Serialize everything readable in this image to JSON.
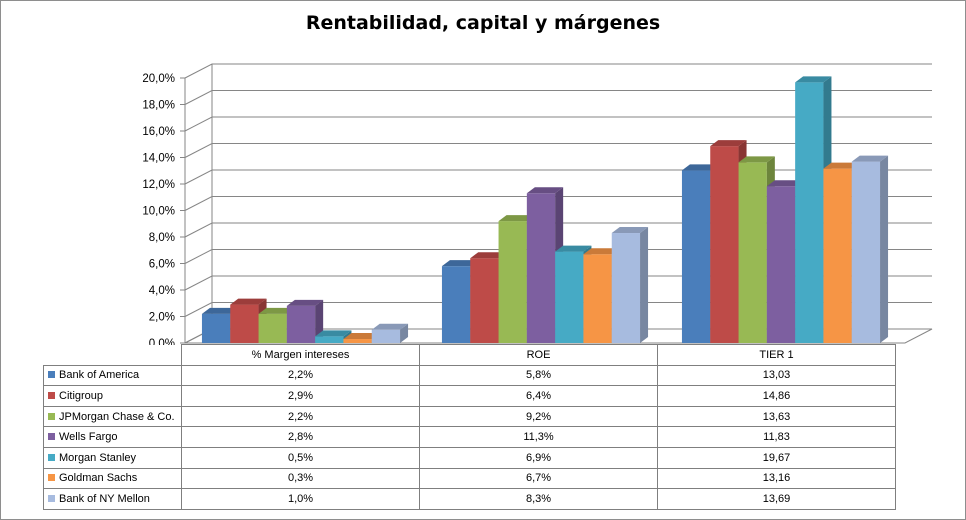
{
  "chart_data": {
    "type": "bar",
    "title": "Rentabilidad, capital y márgenes",
    "categories": [
      "% Margen intereses",
      "ROE",
      "TIER 1"
    ],
    "ylim": [
      0,
      20
    ],
    "ytick_labels": [
      "0,0%",
      "2,0%",
      "4,0%",
      "6,0%",
      "8,0%",
      "10,0%",
      "12,0%",
      "14,0%",
      "16,0%",
      "18,0%",
      "20,0%"
    ],
    "grid": true,
    "legend": "data table below chart",
    "series": [
      {
        "name": "Bank of America",
        "color": "#4a7ebb",
        "values": [
          2.2,
          5.8,
          13.03
        ],
        "labels": [
          "2,2%",
          "5,8%",
          "13,03"
        ]
      },
      {
        "name": "Citigroup",
        "color": "#be4b48",
        "values": [
          2.9,
          6.4,
          14.86
        ],
        "labels": [
          "2,9%",
          "6,4%",
          "14,86"
        ]
      },
      {
        "name": "JPMorgan Chase & Co.",
        "color": "#98b954",
        "values": [
          2.2,
          9.2,
          13.63
        ],
        "labels": [
          "2,2%",
          "9,2%",
          "13,63"
        ]
      },
      {
        "name": "Wells Fargo",
        "color": "#7d5fa0",
        "values": [
          2.8,
          11.3,
          11.83
        ],
        "labels": [
          "2,8%",
          "11,3%",
          "11,83"
        ]
      },
      {
        "name": "Morgan Stanley",
        "color": "#46aac5",
        "values": [
          0.5,
          6.9,
          19.67
        ],
        "labels": [
          "0,5%",
          "6,9%",
          "19,67"
        ]
      },
      {
        "name": "Goldman Sachs",
        "color": "#f69545",
        "values": [
          0.3,
          6.7,
          13.16
        ],
        "labels": [
          "0,3%",
          "6,7%",
          "13,16"
        ]
      },
      {
        "name": "Bank of NY Mellon",
        "color": "#a7bbdf",
        "values": [
          1.0,
          8.3,
          13.69
        ],
        "labels": [
          "1,0%",
          "8,3%",
          "13,69"
        ]
      }
    ]
  }
}
